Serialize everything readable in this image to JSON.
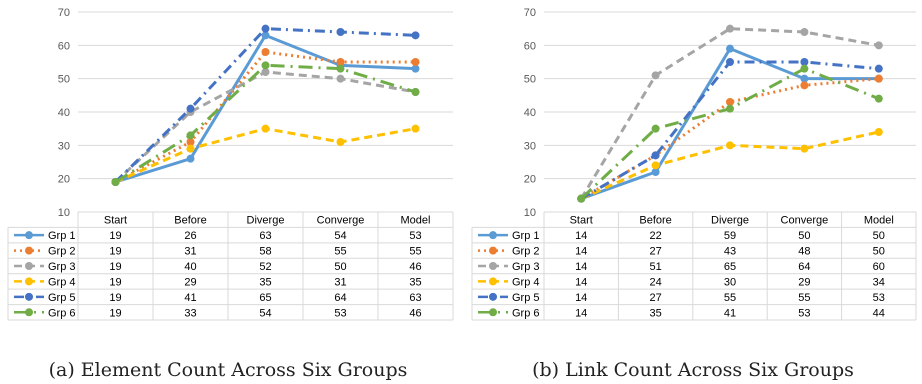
{
  "styles": {
    "grid": "#d9d9d9",
    "axis_text": "#595959",
    "table_text": "#000000",
    "caption_text": "#222222"
  },
  "chart_data": [
    {
      "type": "line",
      "caption": "(a) Element Count Across Six Groups",
      "categories": [
        "Start",
        "Before",
        "Diverge",
        "Converge",
        "Model"
      ],
      "ylim": [
        10,
        70
      ],
      "yticks": [
        10,
        20,
        30,
        40,
        50,
        60,
        70
      ],
      "grid": true,
      "legend": "data-table-left",
      "series": [
        {
          "name": "Grp 1",
          "color": "#5b9bd5",
          "dash": "solid",
          "values": [
            19,
            26,
            63,
            54,
            53
          ]
        },
        {
          "name": "Grp 2",
          "color": "#ed7d31",
          "dash": "dot",
          "values": [
            19,
            31,
            58,
            55,
            55
          ]
        },
        {
          "name": "Grp 3",
          "color": "#a5a5a5",
          "dash": "dash",
          "values": [
            19,
            40,
            52,
            50,
            46
          ]
        },
        {
          "name": "Grp 4",
          "color": "#ffc000",
          "dash": "dash",
          "values": [
            19,
            29,
            35,
            31,
            35
          ]
        },
        {
          "name": "Grp 5",
          "color": "#4472c4",
          "dash": "dashdot",
          "values": [
            19,
            41,
            65,
            64,
            63
          ]
        },
        {
          "name": "Grp 6",
          "color": "#70ad47",
          "dash": "longdashdot",
          "values": [
            19,
            33,
            54,
            53,
            46
          ]
        }
      ]
    },
    {
      "type": "line",
      "caption": "(b) Link Count Across Six Groups",
      "categories": [
        "Start",
        "Before",
        "Diverge",
        "Converge",
        "Model"
      ],
      "ylim": [
        10,
        70
      ],
      "yticks": [
        10,
        20,
        30,
        40,
        50,
        60,
        70
      ],
      "grid": true,
      "legend": "data-table-left",
      "series": [
        {
          "name": "Grp 1",
          "color": "#5b9bd5",
          "dash": "solid",
          "values": [
            14,
            22,
            59,
            50,
            50
          ]
        },
        {
          "name": "Grp 2",
          "color": "#ed7d31",
          "dash": "dot",
          "values": [
            14,
            27,
            43,
            48,
            50
          ]
        },
        {
          "name": "Grp 3",
          "color": "#a5a5a5",
          "dash": "dash",
          "values": [
            14,
            51,
            65,
            64,
            60
          ]
        },
        {
          "name": "Grp 4",
          "color": "#ffc000",
          "dash": "dash",
          "values": [
            14,
            24,
            30,
            29,
            34
          ]
        },
        {
          "name": "Grp 5",
          "color": "#4472c4",
          "dash": "dashdot",
          "values": [
            14,
            27,
            55,
            55,
            53
          ]
        },
        {
          "name": "Grp 6",
          "color": "#70ad47",
          "dash": "longdashdot",
          "values": [
            14,
            35,
            41,
            53,
            44
          ]
        }
      ]
    }
  ]
}
